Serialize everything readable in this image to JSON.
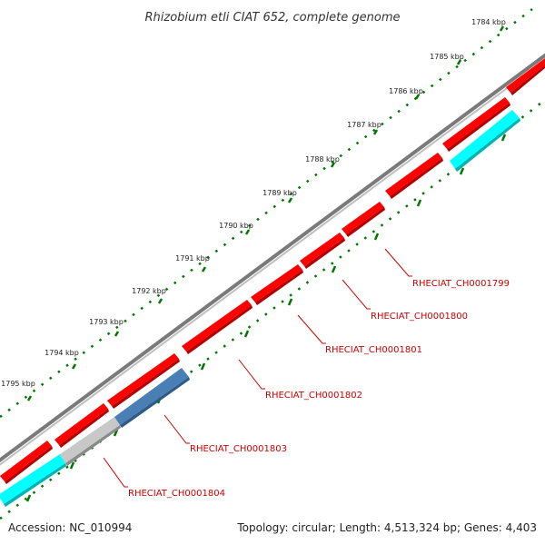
{
  "title": "Rhizobium etli CIAT 652, complete genome",
  "footer": {
    "accession": "Accession: NC_010994",
    "topology": "Topology: circular; Length: 4,513,324 bp; Genes: 4,403"
  },
  "scale_labels": [
    "1784 kbp",
    "1785 kbp",
    "1786 kbp",
    "1787 kbp",
    "1788 kbp",
    "1789 kbp",
    "1790 kbp",
    "1791 kbp",
    "1792 kbp",
    "1793 kbp",
    "1794 kbp",
    "1795 kbp"
  ],
  "gene_labels": [
    "RHECIAT_CH0001799",
    "RHECIAT_CH0001800",
    "RHECIAT_CH0001801",
    "RHECIAT_CH0001802",
    "RHECIAT_CH0001803",
    "RHECIAT_CH0001804"
  ],
  "colors": {
    "backbone": "#808080",
    "gene_red": "#ff0000",
    "gene_cyan": "#00ffff",
    "gene_steelblue": "#4a7fb5",
    "gene_grey": "#c0c0c0",
    "tick_green": "#006600",
    "label_red": "#cc0000"
  }
}
